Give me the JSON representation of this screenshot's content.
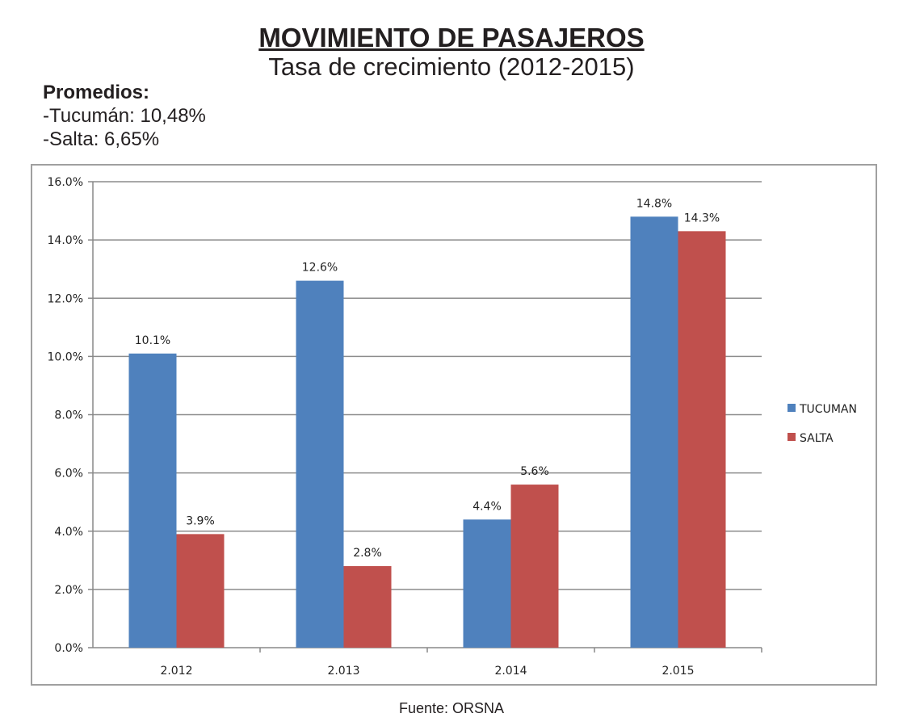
{
  "header": {
    "title": "MOVIMIENTO DE PASAJEROS",
    "subtitle": "Tasa de crecimiento (2012-2015)"
  },
  "averages": {
    "title": "Promedios:",
    "lines": [
      "-Tucumán: 10,48%",
      "-Salta: 6,65%"
    ]
  },
  "footer": {
    "source": "Fuente: ORSNA"
  },
  "chart_data": {
    "type": "bar",
    "categories": [
      "2.012",
      "2.013",
      "2.014",
      "2.015"
    ],
    "series": [
      {
        "name": "TUCUMAN",
        "values": [
          10.1,
          12.6,
          4.4,
          14.8
        ],
        "labels": [
          "10.1%",
          "12.6%",
          "4.4%",
          "14.8%"
        ],
        "color": "#4f81bd"
      },
      {
        "name": "SALTA",
        "values": [
          3.9,
          2.8,
          5.6,
          14.3
        ],
        "labels": [
          "3.9%",
          "2.8%",
          "5.6%",
          "14.3%"
        ],
        "color": "#c0504d"
      }
    ],
    "ylim": [
      0,
      16
    ],
    "yticks": [
      "0.0%",
      "2.0%",
      "4.0%",
      "6.0%",
      "8.0%",
      "10.0%",
      "12.0%",
      "14.0%",
      "16.0%"
    ],
    "grid": true,
    "legend": "right",
    "gridColor": "#8c8c8c"
  }
}
